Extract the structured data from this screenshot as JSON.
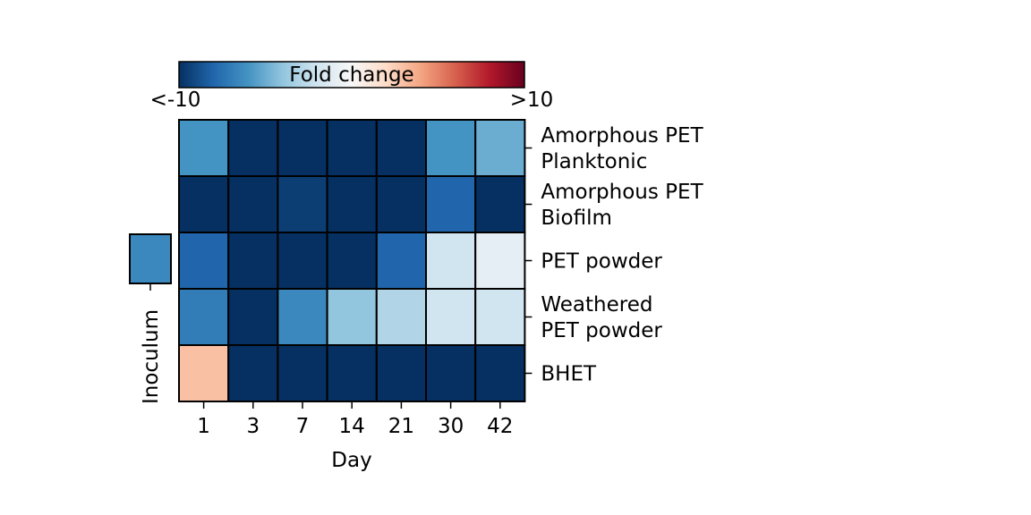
{
  "chart_data": {
    "type": "heatmap",
    "colorbar": {
      "label": "Fold change",
      "min_label": "<-10",
      "max_label": ">10",
      "vmin": -10,
      "vmax": 10,
      "colormap": "RdBu_r",
      "placement": "top"
    },
    "columns": [
      "1",
      "3",
      "7",
      "14",
      "21",
      "30",
      "42"
    ],
    "xlabel": "Day",
    "rows": [
      {
        "label": [
          "Amorphous PET",
          "Planktonic"
        ],
        "values": [
          -6,
          -10,
          -10,
          -10,
          -10,
          -6,
          -5
        ]
      },
      {
        "label": [
          "Amorphous PET",
          "Biofilm"
        ],
        "values": [
          -10,
          -10,
          -9.5,
          -10,
          -10,
          -8,
          -10
        ]
      },
      {
        "label": [
          "PET powder"
        ],
        "values": [
          -8,
          -10,
          -10,
          -10,
          -8,
          -2,
          -1
        ]
      },
      {
        "label": [
          "Weathered",
          "PET powder"
        ],
        "values": [
          -7,
          -10,
          -6.5,
          -4,
          -3,
          -2,
          -2
        ]
      },
      {
        "label": [
          "BHET"
        ],
        "values": [
          3,
          -10,
          -10,
          -10,
          -10,
          -10,
          -10
        ]
      }
    ],
    "inoculum": {
      "label": "Inoculum",
      "value": -6.5,
      "row": "PET powder"
    }
  }
}
